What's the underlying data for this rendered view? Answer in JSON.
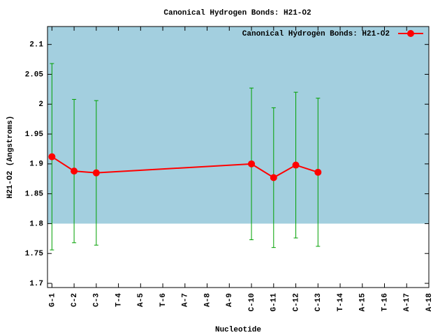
{
  "chart_data": {
    "type": "line",
    "title": "Canonical Hydrogen Bonds: H21-O2",
    "xlabel": "Nucleotide",
    "ylabel": "H21-O2 (Angstroms)",
    "x": [
      1,
      2,
      3,
      10,
      11,
      12,
      13
    ],
    "series": [
      {
        "name": "Canonical Hydrogen Bonds: H21-O2",
        "color": "#ff0000",
        "error_color": "#00a000",
        "values": [
          1.912,
          1.888,
          1.885,
          1.9,
          1.877,
          1.898,
          1.886
        ],
        "errors": [
          0.156,
          0.12,
          0.121,
          0.127,
          0.117,
          0.122,
          0.124
        ]
      }
    ],
    "xlim": [
      0.8,
      18
    ],
    "ylim": [
      1.693,
      2.13
    ],
    "xticks": [
      {
        "value": 1,
        "label": "G-1"
      },
      {
        "value": 2,
        "label": "C-2"
      },
      {
        "value": 3,
        "label": "C-3"
      },
      {
        "value": 4,
        "label": "T-4"
      },
      {
        "value": 5,
        "label": "A-5"
      },
      {
        "value": 6,
        "label": "T-6"
      },
      {
        "value": 7,
        "label": "A-7"
      },
      {
        "value": 8,
        "label": "A-8"
      },
      {
        "value": 9,
        "label": "A-9"
      },
      {
        "value": 10,
        "label": "C-10"
      },
      {
        "value": 11,
        "label": "G-11"
      },
      {
        "value": 12,
        "label": "C-12"
      },
      {
        "value": 13,
        "label": "C-13"
      },
      {
        "value": 14,
        "label": "T-14"
      },
      {
        "value": 15,
        "label": "A-15"
      },
      {
        "value": 16,
        "label": "T-16"
      },
      {
        "value": 17,
        "label": "A-17"
      },
      {
        "value": 18,
        "label": "A-18"
      }
    ],
    "yticks": [
      1.7,
      1.75,
      1.8,
      1.85,
      1.9,
      1.95,
      2,
      2.05,
      2.1
    ],
    "shade_from": 1.8,
    "shade_color": "#a3cfdf",
    "legend": "top-right"
  }
}
